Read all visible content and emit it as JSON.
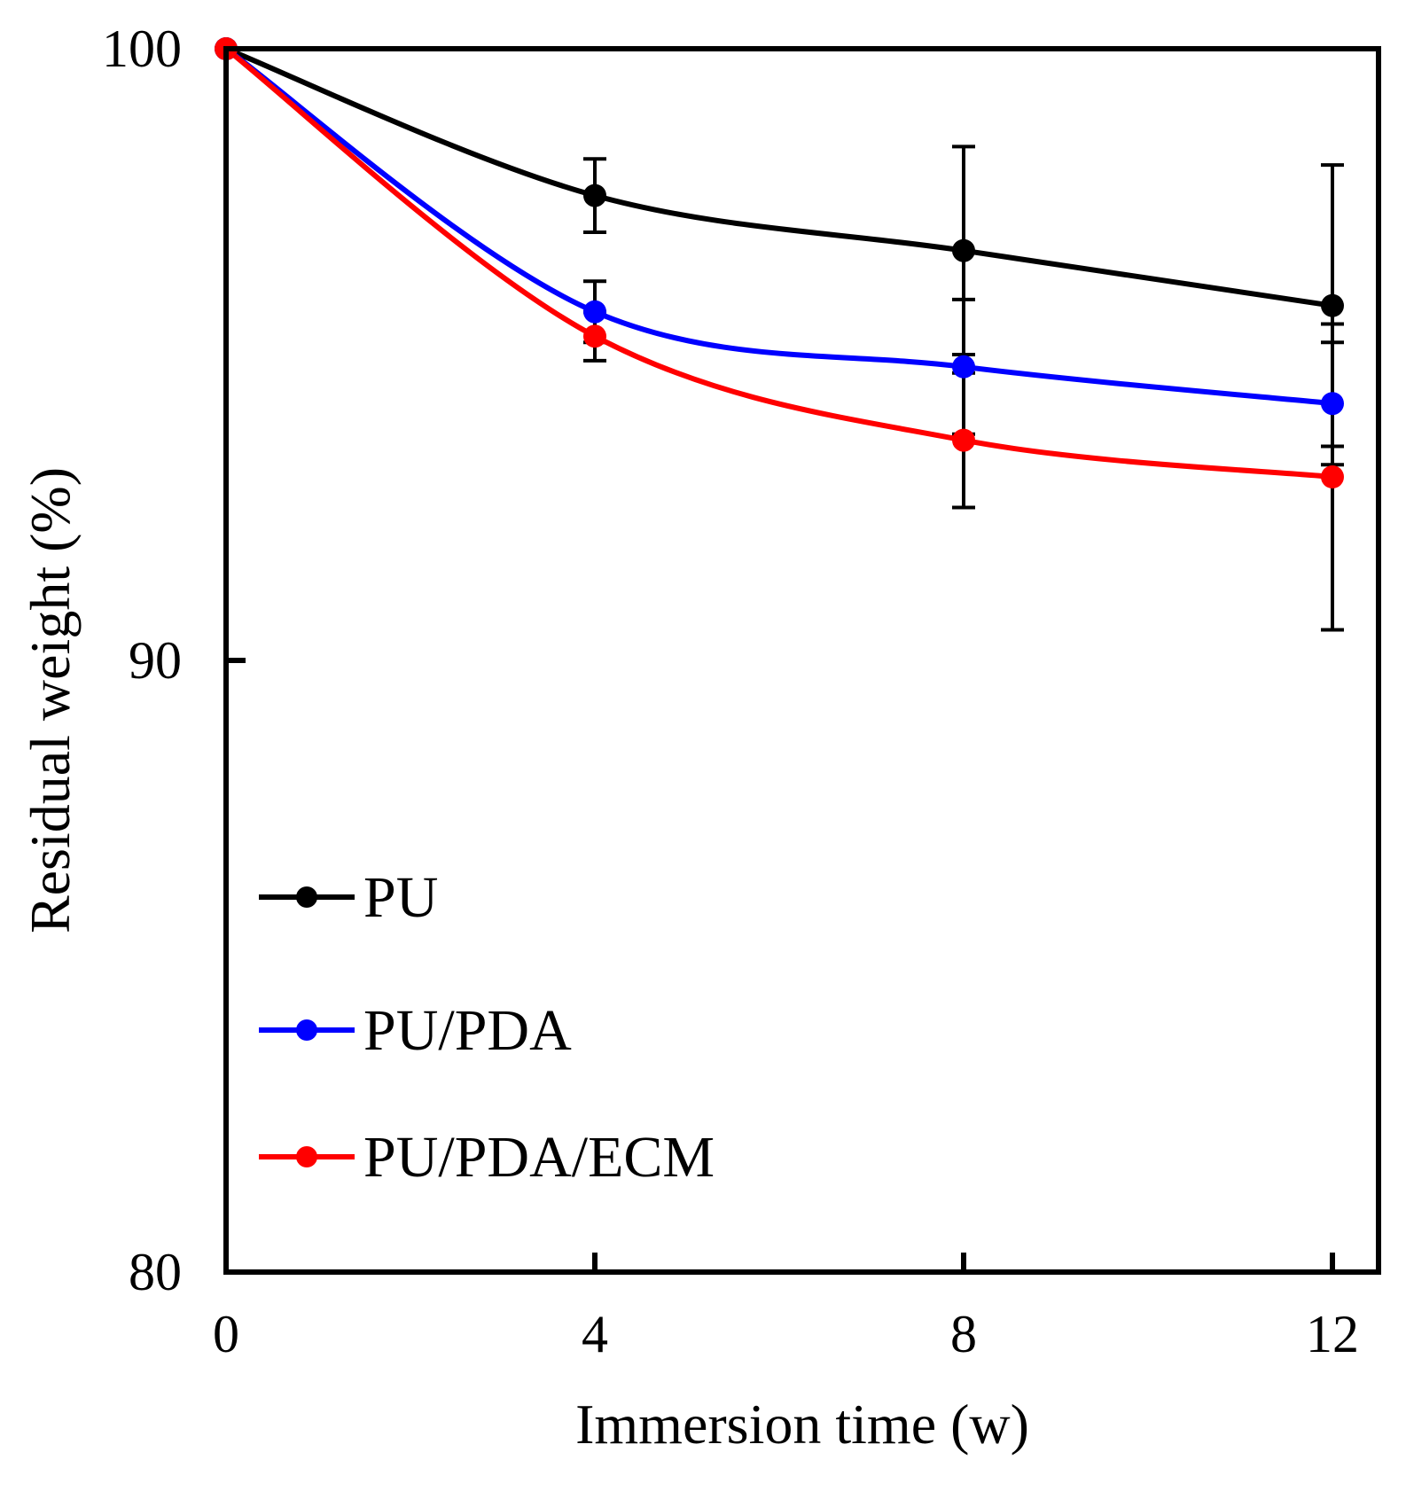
{
  "chart_data": {
    "type": "line",
    "title": "",
    "xlabel": "Immersion time (w)",
    "ylabel": "Residual weight (%)",
    "x": [
      0,
      4,
      8,
      12
    ],
    "xticks": [
      "0",
      "4",
      "8",
      "12"
    ],
    "yticks": [
      "80",
      "90",
      "100"
    ],
    "xlim": [
      0,
      12.5
    ],
    "ylim": [
      80,
      100
    ],
    "grid": false,
    "legend_position": "bottom-left",
    "series": [
      {
        "name": "PU",
        "color": "#000000",
        "values": [
          100,
          97.6,
          96.7,
          95.8
        ],
        "errors": [
          0,
          0.6,
          1.7,
          2.3
        ]
      },
      {
        "name": "PU/PDA",
        "color": "#0000ff",
        "values": [
          100,
          95.7,
          94.8,
          94.2
        ],
        "errors": [
          0,
          0.5,
          1.1,
          1.0
        ]
      },
      {
        "name": "PU/PDA/ECM",
        "color": "#ff0000",
        "values": [
          100,
          95.3,
          93.6,
          93.0
        ],
        "errors": [
          0,
          0.4,
          1.1,
          2.5
        ]
      }
    ]
  }
}
